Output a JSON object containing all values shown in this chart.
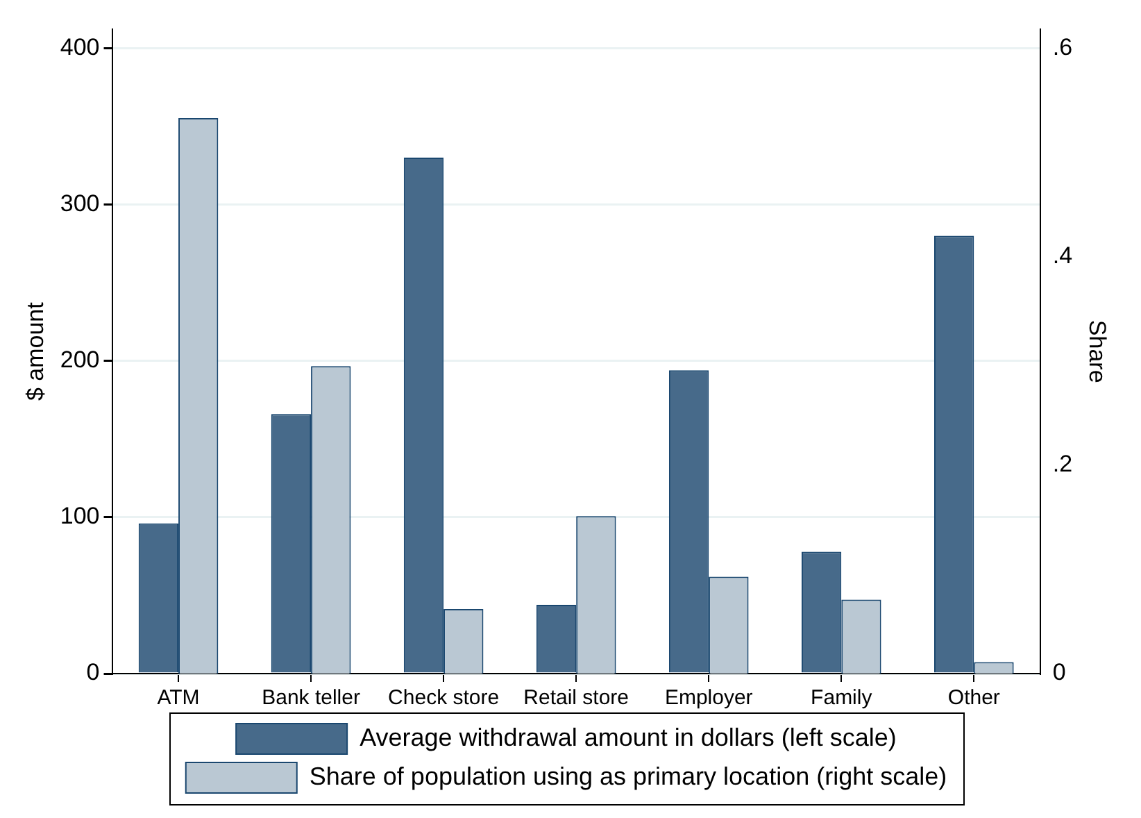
{
  "chart_data": {
    "type": "bar",
    "categories": [
      "ATM",
      "Bank teller",
      "Check store",
      "Retail store",
      "Employer",
      "Family",
      "Other"
    ],
    "series": [
      {
        "name": "Average withdrawal amount in dollars (left scale)",
        "color": "#476a8a",
        "values": [
          96,
          166,
          330,
          44,
          194,
          78,
          280
        ]
      },
      {
        "name": "Share of population using as primary location (right scale)",
        "color": "#bac8d3",
        "axis": "y2",
        "values": [
          0.533,
          0.295,
          0.062,
          0.151,
          0.093,
          0.071,
          0.011
        ]
      }
    ],
    "ylabel": "$ amount",
    "y2label": "Share",
    "ylim": [
      0,
      412
    ],
    "yticks": [
      0,
      100,
      200,
      300,
      400
    ],
    "y2lim": [
      0,
      0.618
    ],
    "y2ticks": [
      0,
      {
        "value": 0.2,
        "label": ".2"
      },
      {
        "value": 0.4,
        "label": ".4"
      },
      {
        "value": 0.6,
        "label": ".6"
      }
    ],
    "grid": "y",
    "legend": "bottom"
  }
}
